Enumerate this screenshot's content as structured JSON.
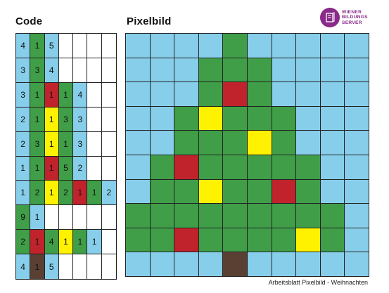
{
  "headings": {
    "code": "Code",
    "pixel": "Pixelbild"
  },
  "logo": {
    "lines": [
      "WIENER",
      "BILDUNGS",
      "SERVER"
    ],
    "icon": "book-icon",
    "color": "#8a2a8a"
  },
  "footer": "Arbeitsblatt Pixelbild - Weihnachten",
  "colors": {
    "B": "#87ceeb",
    "G": "#3f9e47",
    "R": "#c0232c",
    "Y": "#fff200",
    "N": "#5a4032",
    "W": "#ffffff"
  },
  "code_rows": [
    [
      [
        "B",
        "4"
      ],
      [
        "G",
        "1"
      ],
      [
        "B",
        "5"
      ]
    ],
    [
      [
        "B",
        "3"
      ],
      [
        "G",
        "3"
      ],
      [
        "B",
        "4"
      ]
    ],
    [
      [
        "B",
        "3"
      ],
      [
        "G",
        "1"
      ],
      [
        "R",
        "1"
      ],
      [
        "G",
        "1"
      ],
      [
        "B",
        "4"
      ]
    ],
    [
      [
        "B",
        "2"
      ],
      [
        "G",
        "1"
      ],
      [
        "Y",
        "1"
      ],
      [
        "G",
        "3"
      ],
      [
        "B",
        "3"
      ]
    ],
    [
      [
        "B",
        "2"
      ],
      [
        "G",
        "3"
      ],
      [
        "Y",
        "1"
      ],
      [
        "G",
        "1"
      ],
      [
        "B",
        "3"
      ]
    ],
    [
      [
        "B",
        "1"
      ],
      [
        "G",
        "1"
      ],
      [
        "R",
        "1"
      ],
      [
        "G",
        "5"
      ],
      [
        "B",
        "2"
      ]
    ],
    [
      [
        "B",
        "1"
      ],
      [
        "G",
        "2"
      ],
      [
        "Y",
        "1"
      ],
      [
        "G",
        "2"
      ],
      [
        "R",
        "1"
      ],
      [
        "G",
        "1"
      ],
      [
        "B",
        "2"
      ]
    ],
    [
      [
        "G",
        "9"
      ],
      [
        "B",
        "1"
      ]
    ],
    [
      [
        "G",
        "2"
      ],
      [
        "R",
        "1"
      ],
      [
        "G",
        "4"
      ],
      [
        "Y",
        "1"
      ],
      [
        "G",
        "1"
      ],
      [
        "B",
        "1"
      ]
    ],
    [
      [
        "B",
        "4"
      ],
      [
        "N",
        "1"
      ],
      [
        "B",
        "5"
      ]
    ]
  ]
}
